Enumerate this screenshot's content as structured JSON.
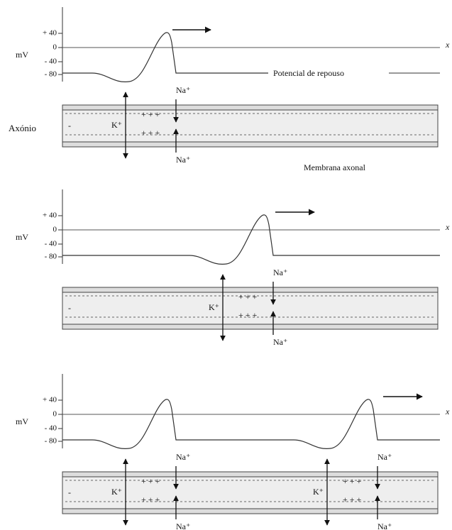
{
  "panels": [
    {
      "ylabel": "mV",
      "xlabel": "x",
      "ticks": [
        "+ 40",
        "0",
        "- 40",
        "- 80"
      ],
      "minus": "-",
      "resting_label": "Potencial de repouso",
      "axon_label": "Axónio",
      "membrane_label": "Membrana axonal",
      "channels": [
        {
          "k": "K⁺",
          "na_top": "Na⁺",
          "na_bottom": "Na⁺",
          "charges_top": "+ + +",
          "charges_bottom": "+ + +"
        }
      ]
    },
    {
      "ylabel": "mV",
      "xlabel": "x",
      "ticks": [
        "+ 40",
        "0",
        "- 40",
        "- 80"
      ],
      "minus": "-",
      "channels": [
        {
          "k": "K⁺",
          "na_top": "Na⁺",
          "na_bottom": "Na⁺",
          "charges_top": "+ + +",
          "charges_bottom": "+ + +"
        }
      ]
    },
    {
      "ylabel": "mV",
      "xlabel": "x",
      "ticks": [
        "+ 40",
        "0",
        "- 40",
        "- 80"
      ],
      "minus": "-",
      "channels": [
        {
          "k": "K⁺",
          "na_top": "Na⁺",
          "na_bottom": "Na⁺",
          "charges_top": "+ + +",
          "charges_bottom": "+ + +"
        },
        {
          "k": "K⁺",
          "na_top": "Na⁺",
          "na_bottom": "Na⁺",
          "charges_top": "+ + +",
          "charges_bottom": "+ + +"
        }
      ]
    }
  ]
}
